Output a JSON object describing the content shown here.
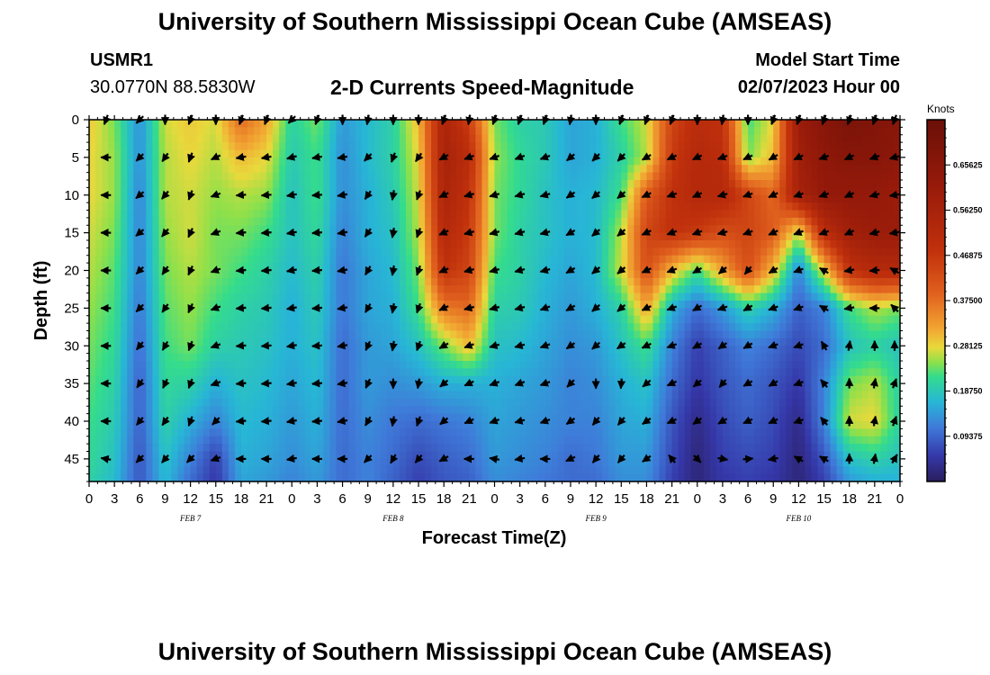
{
  "header": {
    "title": "University of Southern Mississippi Ocean Cube (AMSEAS)",
    "station_name": "USMR1",
    "station_coords": "30.0770N  88.5830W",
    "plot_subtitle": "2-D Currents Speed-Magnitude",
    "model_start_label": "Model Start Time",
    "model_start_value": "02/07/2023 Hour 00",
    "footer_title": "University of Southern Mississippi Ocean Cube (AMSEAS)"
  },
  "chart_data": {
    "type": "heatmap",
    "title": "2-D Currents Speed-Magnitude",
    "xlabel": "Forecast Time(Z)",
    "ylabel": "Depth (ft)",
    "x_hours_range": [
      0,
      96
    ],
    "x_tick_step_hours": 3,
    "x_tick_labels": [
      "0",
      "3",
      "6",
      "9",
      "12",
      "15",
      "18",
      "21",
      "0",
      "3",
      "6",
      "9",
      "12",
      "15",
      "18",
      "21",
      "0",
      "3",
      "6",
      "9",
      "12",
      "15",
      "18",
      "21",
      "0",
      "3",
      "6",
      "9",
      "12",
      "15",
      "18",
      "21",
      "0"
    ],
    "day_labels": [
      {
        "text": "FEB 7",
        "hour": 12
      },
      {
        "text": "FEB 8",
        "hour": 36
      },
      {
        "text": "FEB 9",
        "hour": 60
      },
      {
        "text": "FEB 10",
        "hour": 84
      }
    ],
    "y_depth_range_ft": [
      0,
      48
    ],
    "y_ticks": [
      0,
      5,
      10,
      15,
      20,
      25,
      30,
      35,
      40,
      45
    ],
    "colorbar": {
      "unit": "Knots",
      "range": [
        0,
        0.75
      ],
      "ticks": [
        0.09375,
        0.1875,
        0.28125,
        0.375,
        0.46875,
        0.5625,
        0.65625
      ],
      "tick_labels": [
        "0.09375",
        "0.18750",
        "0.28125",
        "0.37500",
        "0.46875",
        "0.56250",
        "0.65625"
      ]
    },
    "speed_grid": {
      "depths_ft": [
        0,
        5,
        10,
        15,
        20,
        25,
        30,
        35,
        40,
        45,
        48
      ],
      "hours": [
        0,
        3,
        6,
        9,
        12,
        15,
        18,
        21,
        24,
        27,
        30,
        33,
        36,
        39,
        42,
        45,
        48,
        51,
        54,
        57,
        60,
        63,
        66,
        69,
        72,
        75,
        78,
        81,
        84,
        87,
        90,
        93,
        96
      ],
      "knots": [
        [
          0.29,
          0.24,
          0.13,
          0.27,
          0.29,
          0.27,
          0.38,
          0.32,
          0.2,
          0.24,
          0.14,
          0.17,
          0.2,
          0.3,
          0.55,
          0.45,
          0.24,
          0.2,
          0.19,
          0.15,
          0.16,
          0.22,
          0.27,
          0.44,
          0.5,
          0.48,
          0.22,
          0.28,
          0.6,
          0.66,
          0.7,
          0.68,
          0.66
        ],
        [
          0.28,
          0.25,
          0.13,
          0.26,
          0.28,
          0.26,
          0.3,
          0.28,
          0.19,
          0.22,
          0.13,
          0.17,
          0.2,
          0.28,
          0.56,
          0.5,
          0.25,
          0.21,
          0.19,
          0.15,
          0.16,
          0.2,
          0.26,
          0.46,
          0.52,
          0.5,
          0.24,
          0.3,
          0.58,
          0.64,
          0.66,
          0.66,
          0.64
        ],
        [
          0.28,
          0.25,
          0.12,
          0.26,
          0.27,
          0.25,
          0.26,
          0.25,
          0.18,
          0.22,
          0.13,
          0.16,
          0.19,
          0.27,
          0.55,
          0.48,
          0.24,
          0.21,
          0.18,
          0.16,
          0.17,
          0.22,
          0.4,
          0.48,
          0.52,
          0.52,
          0.44,
          0.38,
          0.56,
          0.62,
          0.62,
          0.62,
          0.6
        ],
        [
          0.27,
          0.24,
          0.12,
          0.25,
          0.27,
          0.24,
          0.24,
          0.22,
          0.18,
          0.21,
          0.12,
          0.16,
          0.18,
          0.26,
          0.52,
          0.46,
          0.24,
          0.2,
          0.18,
          0.16,
          0.17,
          0.26,
          0.44,
          0.48,
          0.46,
          0.42,
          0.44,
          0.4,
          0.26,
          0.5,
          0.58,
          0.6,
          0.6
        ],
        [
          0.26,
          0.23,
          0.12,
          0.24,
          0.26,
          0.24,
          0.22,
          0.2,
          0.17,
          0.2,
          0.11,
          0.15,
          0.17,
          0.24,
          0.48,
          0.44,
          0.22,
          0.2,
          0.17,
          0.15,
          0.17,
          0.27,
          0.42,
          0.3,
          0.22,
          0.32,
          0.42,
          0.3,
          0.12,
          0.28,
          0.48,
          0.52,
          0.52
        ],
        [
          0.25,
          0.22,
          0.11,
          0.23,
          0.25,
          0.22,
          0.2,
          0.19,
          0.16,
          0.19,
          0.11,
          0.15,
          0.16,
          0.22,
          0.36,
          0.38,
          0.2,
          0.19,
          0.16,
          0.14,
          0.16,
          0.2,
          0.32,
          0.16,
          0.1,
          0.14,
          0.2,
          0.16,
          0.09,
          0.12,
          0.22,
          0.26,
          0.24
        ],
        [
          0.24,
          0.21,
          0.1,
          0.22,
          0.24,
          0.2,
          0.19,
          0.18,
          0.16,
          0.18,
          0.1,
          0.14,
          0.15,
          0.18,
          0.24,
          0.3,
          0.18,
          0.17,
          0.15,
          0.13,
          0.14,
          0.18,
          0.22,
          0.12,
          0.06,
          0.09,
          0.12,
          0.1,
          0.07,
          0.1,
          0.18,
          0.2,
          0.18
        ],
        [
          0.23,
          0.2,
          0.09,
          0.21,
          0.2,
          0.16,
          0.18,
          0.17,
          0.15,
          0.17,
          0.1,
          0.14,
          0.13,
          0.14,
          0.16,
          0.16,
          0.16,
          0.15,
          0.14,
          0.12,
          0.13,
          0.16,
          0.18,
          0.1,
          0.05,
          0.08,
          0.1,
          0.08,
          0.05,
          0.12,
          0.24,
          0.26,
          0.2
        ],
        [
          0.22,
          0.19,
          0.09,
          0.2,
          0.16,
          0.12,
          0.17,
          0.16,
          0.14,
          0.16,
          0.1,
          0.13,
          0.11,
          0.1,
          0.11,
          0.12,
          0.15,
          0.14,
          0.13,
          0.12,
          0.12,
          0.15,
          0.16,
          0.08,
          0.03,
          0.07,
          0.09,
          0.07,
          0.03,
          0.12,
          0.27,
          0.28,
          0.2
        ],
        [
          0.21,
          0.18,
          0.08,
          0.18,
          0.12,
          0.06,
          0.16,
          0.15,
          0.13,
          0.15,
          0.1,
          0.12,
          0.1,
          0.07,
          0.09,
          0.1,
          0.14,
          0.13,
          0.12,
          0.1,
          0.11,
          0.14,
          0.14,
          0.07,
          0.02,
          0.06,
          0.07,
          0.06,
          0.02,
          0.08,
          0.18,
          0.2,
          0.18
        ],
        [
          0.2,
          0.17,
          0.08,
          0.17,
          0.1,
          0.05,
          0.15,
          0.14,
          0.12,
          0.14,
          0.1,
          0.12,
          0.09,
          0.06,
          0.08,
          0.09,
          0.13,
          0.12,
          0.11,
          0.1,
          0.1,
          0.13,
          0.13,
          0.06,
          0.02,
          0.05,
          0.06,
          0.05,
          0.02,
          0.06,
          0.14,
          0.16,
          0.16
        ]
      ]
    },
    "arrows": {
      "depths_ft": [
        0,
        5,
        10,
        15,
        20,
        25,
        30,
        35,
        40,
        45
      ],
      "hours": [
        2,
        6,
        9,
        12,
        15,
        18,
        21,
        24,
        27,
        30,
        33,
        36,
        39,
        42,
        45,
        48,
        51,
        54,
        57,
        60,
        63,
        66,
        69,
        72,
        75,
        78,
        81,
        84,
        87,
        90,
        93,
        96
      ],
      "direction_deg": [
        [
          200,
          225,
          180,
          200,
          180,
          200,
          200,
          225,
          200,
          180,
          190,
          180,
          180,
          200,
          190,
          200,
          200,
          200,
          190,
          180,
          200,
          200,
          200,
          180,
          190,
          180,
          200,
          200,
          200,
          200,
          200,
          200
        ],
        [
          270,
          225,
          215,
          200,
          245,
          260,
          260,
          255,
          260,
          260,
          225,
          200,
          215,
          240,
          250,
          250,
          250,
          250,
          230,
          225,
          225,
          240,
          245,
          245,
          250,
          245,
          240,
          245,
          250,
          245,
          250,
          255
        ],
        [
          270,
          230,
          220,
          200,
          250,
          265,
          265,
          260,
          265,
          260,
          215,
          190,
          200,
          245,
          255,
          255,
          255,
          255,
          235,
          230,
          230,
          245,
          250,
          245,
          255,
          250,
          245,
          250,
          250,
          245,
          255,
          260
        ],
        [
          270,
          230,
          220,
          205,
          250,
          265,
          265,
          260,
          265,
          260,
          215,
          190,
          200,
          245,
          255,
          255,
          255,
          255,
          240,
          230,
          230,
          245,
          250,
          250,
          255,
          250,
          245,
          250,
          250,
          245,
          255,
          260
        ],
        [
          270,
          225,
          215,
          205,
          250,
          265,
          265,
          260,
          265,
          260,
          210,
          190,
          200,
          245,
          255,
          255,
          255,
          255,
          240,
          230,
          230,
          245,
          250,
          240,
          230,
          220,
          240,
          250,
          300,
          260,
          265,
          300
        ],
        [
          270,
          225,
          215,
          205,
          250,
          265,
          265,
          260,
          265,
          260,
          210,
          190,
          200,
          245,
          255,
          255,
          255,
          250,
          240,
          230,
          230,
          245,
          250,
          240,
          250,
          240,
          250,
          250,
          300,
          260,
          270,
          315
        ],
        [
          270,
          220,
          210,
          200,
          250,
          265,
          265,
          260,
          265,
          260,
          205,
          190,
          200,
          240,
          250,
          255,
          255,
          250,
          235,
          230,
          235,
          245,
          250,
          240,
          235,
          240,
          250,
          250,
          330,
          10,
          0,
          0
        ],
        [
          270,
          215,
          205,
          200,
          250,
          265,
          265,
          260,
          265,
          260,
          205,
          180,
          190,
          230,
          245,
          250,
          250,
          250,
          225,
          180,
          185,
          230,
          245,
          230,
          220,
          240,
          240,
          250,
          320,
          0,
          10,
          20
        ],
        [
          270,
          220,
          215,
          200,
          225,
          265,
          265,
          260,
          265,
          260,
          210,
          190,
          200,
          230,
          245,
          250,
          255,
          250,
          235,
          220,
          220,
          235,
          245,
          235,
          240,
          245,
          245,
          250,
          320,
          0,
          10,
          20
        ],
        [
          280,
          225,
          220,
          225,
          250,
          270,
          270,
          260,
          270,
          270,
          225,
          210,
          220,
          240,
          270,
          280,
          260,
          270,
          245,
          220,
          220,
          235,
          320,
          135,
          100,
          85,
          260,
          300,
          300,
          0,
          10,
          30
        ]
      ]
    }
  }
}
